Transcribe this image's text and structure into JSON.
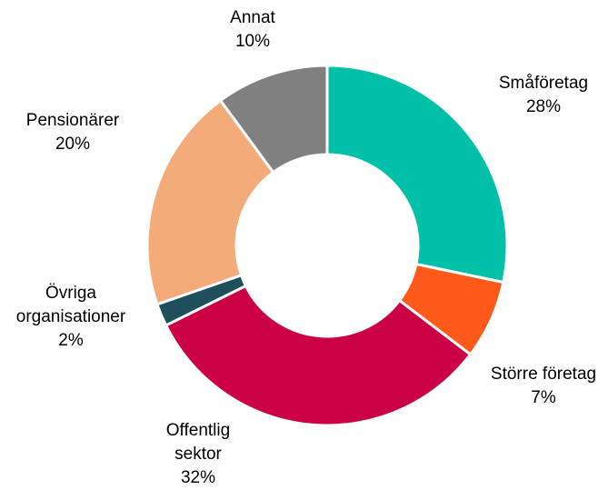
{
  "chart_data": {
    "type": "donut",
    "categories": [
      "Småföretag",
      "Större företag",
      "Offentlig sektor",
      "Övriga organisationer",
      "Pensionärer",
      "Annat"
    ],
    "values": [
      28,
      7,
      32,
      2,
      20,
      10
    ],
    "value_labels": [
      "28%",
      "7%",
      "32%",
      "2%",
      "20%",
      "10%"
    ],
    "colors": [
      "#00c0a8",
      "#ff5a1a",
      "#cc0044",
      "#1f4f5a",
      "#f4ab7a",
      "#808080"
    ]
  }
}
